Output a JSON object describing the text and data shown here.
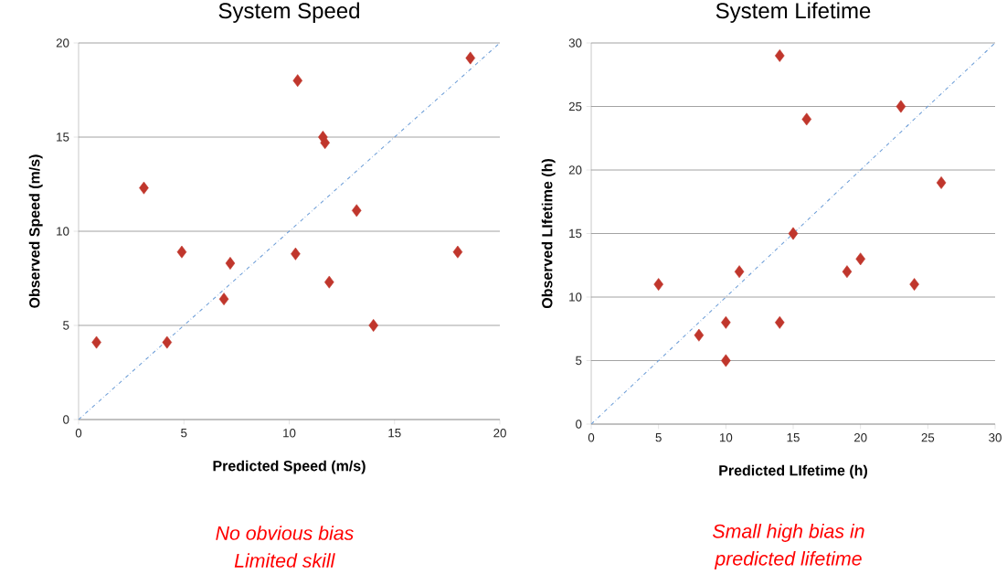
{
  "chart_data": [
    {
      "type": "scatter",
      "title": "System Speed",
      "xlabel": "Predicted Speed (m/s)",
      "ylabel": "Observed Speed (m/s)",
      "xlim": [
        0,
        20
      ],
      "ylim": [
        0,
        20
      ],
      "xticks": [
        0,
        5,
        10,
        15,
        20
      ],
      "yticks": [
        0,
        5,
        10,
        15,
        20
      ],
      "grid": "y",
      "series": [
        {
          "marker": "diamond",
          "color": "#c0362c",
          "x": [
            0.85,
            3.1,
            4.2,
            4.9,
            6.9,
            7.2,
            10.3,
            10.4,
            11.6,
            11.7,
            11.9,
            13.2,
            14.0,
            18.0,
            18.6
          ],
          "values": [
            4.1,
            12.3,
            4.1,
            8.9,
            6.4,
            8.3,
            8.8,
            18.0,
            15.0,
            14.7,
            7.3,
            11.1,
            5.0,
            8.9,
            19.2
          ]
        },
        {
          "type": "line",
          "marker": "none",
          "line_style": "dashdot",
          "color": "#6f9fd8",
          "x": [
            0,
            20
          ],
          "values": [
            0,
            20
          ]
        }
      ],
      "annotations": [
        "*No obvious bias*",
        "*Limited skill*"
      ]
    },
    {
      "type": "scatter",
      "title": "System Lifetime",
      "xlabel": "Predicted LIfetime (h)",
      "ylabel": "Observed LIfetime (h)",
      "xlim": [
        0,
        30
      ],
      "ylim": [
        0,
        30
      ],
      "xticks": [
        0,
        5,
        10,
        15,
        20,
        25,
        30
      ],
      "yticks": [
        0,
        5,
        10,
        15,
        20,
        25,
        30
      ],
      "grid": "y",
      "series": [
        {
          "marker": "diamond",
          "color": "#c0362c",
          "x": [
            5,
            8,
            10,
            10,
            11,
            14,
            14,
            15,
            16,
            19,
            20,
            23,
            24,
            26
          ],
          "values": [
            11,
            7,
            8,
            5,
            12,
            29,
            8,
            15,
            24,
            12,
            13,
            25,
            11,
            19
          ]
        },
        {
          "type": "line",
          "marker": "none",
          "line_style": "dashdot",
          "color": "#6f9fd8",
          "x": [
            0,
            30
          ],
          "values": [
            0,
            30
          ]
        }
      ],
      "annotations": [
        "*Small high bias in*",
        "*predicted lifetime*"
      ]
    }
  ]
}
